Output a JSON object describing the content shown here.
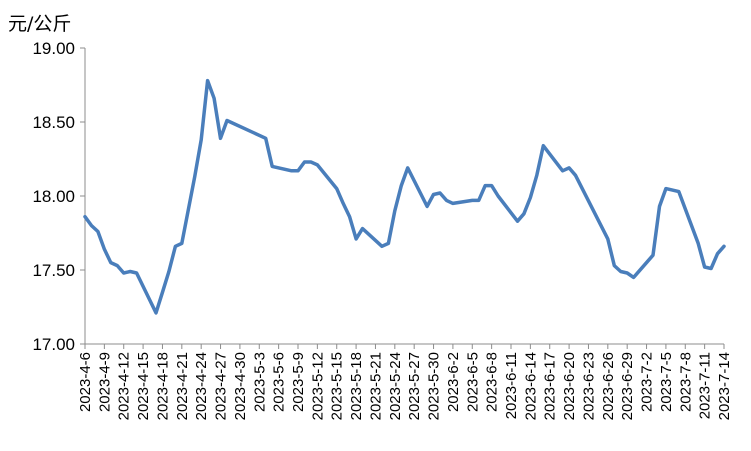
{
  "chart_data": {
    "type": "line",
    "title": "",
    "xlabel": "",
    "ylabel": "元/公斤",
    "ylim": [
      17.0,
      19.0
    ],
    "yticks": [
      "17.00",
      "17.50",
      "18.00",
      "18.50",
      "19.00"
    ],
    "grid": false,
    "legend": "none",
    "line_color": "#4a7ebb",
    "x_tick_labels": [
      "2023-4-6",
      "2023-4-9",
      "2023-4-12",
      "2023-4-15",
      "2023-4-18",
      "2023-4-21",
      "2023-4-24",
      "2023-4-27",
      "2023-4-30",
      "2023-5-3",
      "2023-5-6",
      "2023-5-9",
      "2023-5-12",
      "2023-5-15",
      "2023-5-18",
      "2023-5-21",
      "2023-5-24",
      "2023-5-27",
      "2023-5-30",
      "2023-6-2",
      "2023-6-5",
      "2023-6-8",
      "2023-6-11",
      "2023-6-14",
      "2023-6-17",
      "2023-6-20",
      "2023-6-23",
      "2023-6-26",
      "2023-6-29",
      "2023-7-2",
      "2023-7-5",
      "2023-7-8",
      "2023-7-11",
      "2023-7-14"
    ],
    "series": [
      {
        "x": [
          "2023-4-6",
          "2023-4-7",
          "2023-4-8",
          "2023-4-9",
          "2023-4-10",
          "2023-4-11",
          "2023-4-12",
          "2023-4-13",
          "2023-4-14",
          "2023-4-17",
          "2023-4-18",
          "2023-4-19",
          "2023-4-20",
          "2023-4-21",
          "2023-4-23",
          "2023-4-24",
          "2023-4-25",
          "2023-4-26",
          "2023-4-27",
          "2023-4-28",
          "2023-5-4",
          "2023-5-5",
          "2023-5-8",
          "2023-5-9",
          "2023-5-10",
          "2023-5-11",
          "2023-5-12",
          "2023-5-15",
          "2023-5-16",
          "2023-5-17",
          "2023-5-18",
          "2023-5-19",
          "2023-5-22",
          "2023-5-23",
          "2023-5-24",
          "2023-5-25",
          "2023-5-26",
          "2023-5-29",
          "2023-5-30",
          "2023-5-31",
          "2023-6-1",
          "2023-6-2",
          "2023-6-5",
          "2023-6-6",
          "2023-6-7",
          "2023-6-8",
          "2023-6-9",
          "2023-6-12",
          "2023-6-13",
          "2023-6-14",
          "2023-6-15",
          "2023-6-16",
          "2023-6-19",
          "2023-6-20",
          "2023-6-21",
          "2023-6-26",
          "2023-6-27",
          "2023-6-28",
          "2023-6-29",
          "2023-6-30",
          "2023-7-3",
          "2023-7-4",
          "2023-7-5",
          "2023-7-6",
          "2023-7-7",
          "2023-7-10",
          "2023-7-11",
          "2023-7-12",
          "2023-7-13",
          "2023-7-14"
        ],
        "y": [
          17.86,
          17.8,
          17.76,
          17.64,
          17.55,
          17.53,
          17.48,
          17.49,
          17.48,
          17.21,
          17.35,
          17.49,
          17.66,
          17.68,
          18.13,
          18.38,
          18.78,
          18.66,
          18.39,
          18.51,
          18.39,
          18.2,
          18.17,
          18.17,
          18.23,
          18.23,
          18.21,
          18.05,
          17.95,
          17.86,
          17.71,
          17.78,
          17.66,
          17.68,
          17.9,
          18.07,
          18.19,
          17.93,
          18.01,
          18.02,
          17.97,
          17.95,
          17.97,
          17.97,
          18.07,
          18.07,
          18.0,
          17.83,
          17.88,
          17.99,
          18.14,
          18.34,
          18.17,
          18.19,
          18.14,
          17.71,
          17.53,
          17.49,
          17.48,
          17.45,
          17.6,
          17.93,
          18.05,
          18.04,
          18.03,
          17.68,
          17.52,
          17.51,
          17.61,
          17.66
        ]
      }
    ]
  }
}
